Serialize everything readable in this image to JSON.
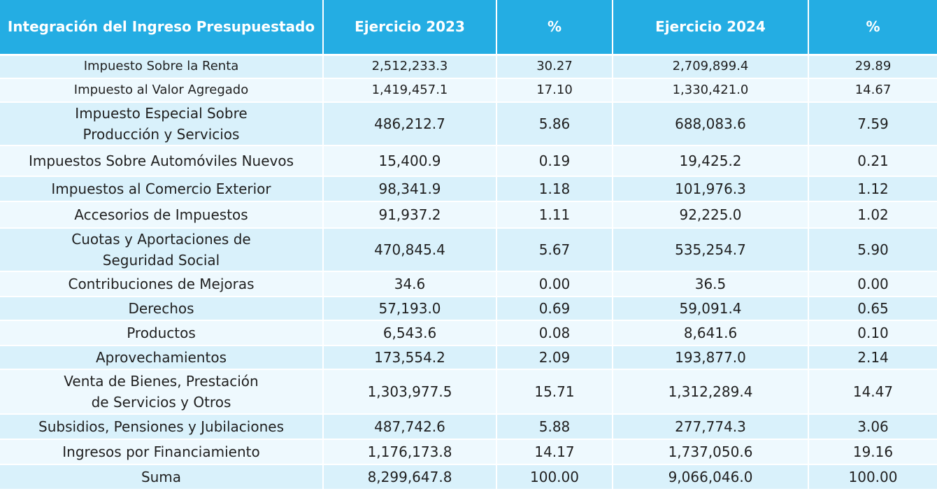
{
  "table": {
    "headers": [
      "Integración del Ingreso Presupuestado",
      "Ejercicio 2023",
      "%",
      "Ejercicio 2024",
      "%"
    ],
    "rows": [
      [
        "Impuesto Sobre la Renta",
        "2,512,233.3",
        "30.27",
        "2,709,899.4",
        "29.89"
      ],
      [
        "Impuesto al Valor Agregado",
        "1,419,457.1",
        "17.10",
        "1,330,421.0",
        "14.67"
      ],
      [
        "Impuesto Especial Sobre\nProducción y Servicios",
        "486,212.7",
        "5.86",
        "688,083.6",
        "7.59"
      ],
      [
        "Impuestos Sobre Automóviles Nuevos",
        "15,400.9",
        "0.19",
        "19,425.2",
        "0.21"
      ],
      [
        "Impuestos al Comercio Exterior",
        "98,341.9",
        "1.18",
        "101,976.3",
        "1.12"
      ],
      [
        "Accesorios de Impuestos",
        "91,937.2",
        "1.11",
        "92,225.0",
        "1.02"
      ],
      [
        "Cuotas y Aportaciones de\nSeguridad Social",
        "470,845.4",
        "5.67",
        "535,254.7",
        "5.90"
      ],
      [
        "Contribuciones de Mejoras",
        "34.6",
        "0.00",
        "36.5",
        "0.00"
      ],
      [
        "Derechos",
        "57,193.0",
        "0.69",
        "59,091.4",
        "0.65"
      ],
      [
        "Productos",
        "6,543.6",
        "0.08",
        "8,641.6",
        "0.10"
      ],
      [
        "Aprovechamientos",
        "173,554.2",
        "2.09",
        "193,877.0",
        "2.14"
      ],
      [
        "Venta de Bienes, Prestación\nde Servicios y Otros",
        "1,303,977.5",
        "15.71",
        "1,312,289.4",
        "14.47"
      ],
      [
        "Subsidios, Pensiones y Jubilaciones",
        "487,742.6",
        "5.88",
        "277,774.3",
        "3.06"
      ],
      [
        "Ingresos por Financiamiento",
        "1,176,173.8",
        "14.17",
        "1,737,050.6",
        "19.16"
      ],
      [
        "Suma",
        "8,299,647.8",
        "100.00",
        "9,066,046.0",
        "100.00"
      ]
    ]
  },
  "colors": {
    "header_bg": "#24ade3",
    "row_odd": "#d9f1fb",
    "row_even": "#eef9fe"
  }
}
